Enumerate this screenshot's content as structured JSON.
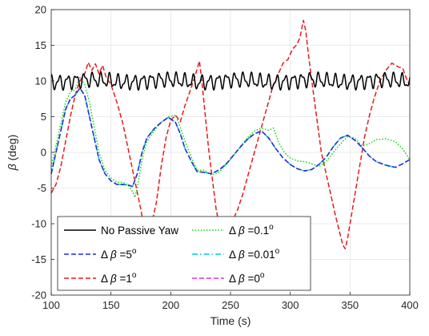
{
  "chart_data": {
    "type": "line",
    "title": "",
    "xlabel": "Time (s)",
    "ylabel_symbol": "β",
    "ylabel_unit": " (deg)",
    "xlim": [
      100,
      400
    ],
    "ylim": [
      -20,
      20
    ],
    "xticks": [
      100,
      150,
      200,
      250,
      300,
      350,
      400
    ],
    "yticks": [
      -20,
      -15,
      -10,
      -5,
      0,
      5,
      10,
      15,
      20
    ],
    "grid": true,
    "legend_position": "lower-left",
    "series": [
      {
        "name": "No Passive Yaw",
        "legend": {
          "pre": "No Passive Yaw",
          "post": "",
          "sup": ""
        },
        "color": "#000000",
        "dash": "solid",
        "oscillation": {
          "mean": 10.0,
          "amplitude": 1.1,
          "period_s": 7
        }
      },
      {
        "name": "Δβ=5°",
        "legend": {
          "pre": "Δ ",
          "post": " =5",
          "sup": "o"
        },
        "color": "#1f2fd6",
        "dash": "dashed",
        "points": [
          [
            100,
            -3
          ],
          [
            104,
            0
          ],
          [
            108,
            3
          ],
          [
            112,
            6
          ],
          [
            116,
            7.5
          ],
          [
            120,
            8
          ],
          [
            124,
            9
          ],
          [
            128,
            8
          ],
          [
            132,
            5
          ],
          [
            136,
            2
          ],
          [
            140,
            -1
          ],
          [
            145,
            -3
          ],
          [
            150,
            -4
          ],
          [
            155,
            -4.5
          ],
          [
            160,
            -4.5
          ],
          [
            165,
            -4.6
          ],
          [
            168,
            -4.8
          ],
          [
            172,
            -3
          ],
          [
            176,
            0
          ],
          [
            180,
            2
          ],
          [
            186,
            3.3
          ],
          [
            192,
            4.2
          ],
          [
            198,
            4.9
          ],
          [
            204,
            4.2
          ],
          [
            208,
            2.6
          ],
          [
            212,
            0.5
          ],
          [
            218,
            -1.5
          ],
          [
            222,
            -2.7
          ],
          [
            228,
            -2.8
          ],
          [
            234,
            -3
          ],
          [
            240,
            -2.5
          ],
          [
            246,
            -1.7
          ],
          [
            252,
            -0.5
          ],
          [
            258,
            0.7
          ],
          [
            264,
            1.8
          ],
          [
            270,
            2.6
          ],
          [
            276,
            3
          ],
          [
            282,
            2
          ],
          [
            288,
            0.5
          ],
          [
            294,
            -0.8
          ],
          [
            300,
            -1.7
          ],
          [
            306,
            -2.3
          ],
          [
            312,
            -2.6
          ],
          [
            318,
            -2.4
          ],
          [
            324,
            -1.7
          ],
          [
            330,
            -0.7
          ],
          [
            336,
            0.8
          ],
          [
            342,
            2
          ],
          [
            348,
            2.4
          ],
          [
            354,
            1.7
          ],
          [
            360,
            0.7
          ],
          [
            366,
            -0.5
          ],
          [
            372,
            -1.3
          ],
          [
            380,
            -1.8
          ],
          [
            388,
            -2.1
          ],
          [
            394,
            -1.6
          ],
          [
            400,
            -1
          ]
        ]
      },
      {
        "name": "Δβ=1°",
        "legend": {
          "pre": "Δ ",
          "post": " =1",
          "sup": "o"
        },
        "color": "#e8191c",
        "dash": "dashed",
        "points": [
          [
            100,
            -5.7
          ],
          [
            104,
            -4.5
          ],
          [
            108,
            -2
          ],
          [
            112,
            1.5
          ],
          [
            116,
            5
          ],
          [
            120,
            8
          ],
          [
            124,
            10
          ],
          [
            128,
            11
          ],
          [
            131,
            12.6
          ],
          [
            134,
            11.5
          ],
          [
            137,
            12.4
          ],
          [
            140,
            11
          ],
          [
            143,
            12.2
          ],
          [
            146,
            10.5
          ],
          [
            150,
            9.5
          ],
          [
            155,
            7
          ],
          [
            160,
            4
          ],
          [
            165,
            0
          ],
          [
            170,
            -4
          ],
          [
            175,
            -8
          ],
          [
            178,
            -11
          ],
          [
            181,
            -12.3
          ],
          [
            184,
            -10
          ],
          [
            188,
            -7
          ],
          [
            192,
            -2
          ],
          [
            196,
            2
          ],
          [
            200,
            4.5
          ],
          [
            204,
            5.2
          ],
          [
            208,
            4.3
          ],
          [
            212,
            6.6
          ],
          [
            216,
            8.5
          ],
          [
            220,
            10.5
          ],
          [
            224,
            12.8
          ],
          [
            226,
            10
          ],
          [
            229,
            5
          ],
          [
            232,
            0
          ],
          [
            235,
            -4
          ],
          [
            238,
            -8
          ],
          [
            241,
            -10.5
          ],
          [
            244,
            -11.5
          ],
          [
            248,
            -10.5
          ],
          [
            252,
            -9.5
          ],
          [
            256,
            -8
          ],
          [
            260,
            -6
          ],
          [
            265,
            -3
          ],
          [
            270,
            0
          ],
          [
            275,
            3
          ],
          [
            280,
            6
          ],
          [
            285,
            9
          ],
          [
            290,
            11
          ],
          [
            294,
            12.5
          ],
          [
            298,
            13
          ],
          [
            302,
            14.5
          ],
          [
            305,
            15
          ],
          [
            308,
            16
          ],
          [
            311,
            18.5
          ],
          [
            313,
            17
          ],
          [
            315,
            14
          ],
          [
            318,
            10
          ],
          [
            322,
            5
          ],
          [
            326,
            0
          ],
          [
            330,
            -3
          ],
          [
            334,
            -6
          ],
          [
            338,
            -9
          ],
          [
            341,
            -11
          ],
          [
            344,
            -13
          ],
          [
            346,
            -13.5
          ],
          [
            348,
            -12
          ],
          [
            350,
            -10
          ],
          [
            354,
            -6
          ],
          [
            358,
            -2
          ],
          [
            362,
            2
          ],
          [
            366,
            5
          ],
          [
            370,
            7.5
          ],
          [
            375,
            10
          ],
          [
            380,
            11.5
          ],
          [
            385,
            12.5
          ],
          [
            390,
            12
          ],
          [
            394,
            11.8
          ],
          [
            398,
            10
          ],
          [
            400,
            9.5
          ]
        ]
      },
      {
        "name": "Δβ=0.1°",
        "legend": {
          "pre": "Δ ",
          "post": " =0.1",
          "sup": "o"
        },
        "color": "#22d422",
        "dash": "dotted",
        "points": [
          [
            100,
            -2
          ],
          [
            104,
            1
          ],
          [
            108,
            4
          ],
          [
            112,
            7
          ],
          [
            116,
            8.5
          ],
          [
            120,
            8.8
          ],
          [
            124,
            10.5
          ],
          [
            128,
            9.5
          ],
          [
            132,
            7
          ],
          [
            136,
            3.5
          ],
          [
            140,
            0
          ],
          [
            145,
            -2.5
          ],
          [
            150,
            -3.6
          ],
          [
            155,
            -4.2
          ],
          [
            160,
            -4.2
          ],
          [
            164,
            -4.5
          ],
          [
            168,
            -5.5
          ],
          [
            170,
            -6.3
          ],
          [
            172,
            -5
          ],
          [
            176,
            -1
          ],
          [
            180,
            1.5
          ],
          [
            186,
            3
          ],
          [
            192,
            4.2
          ],
          [
            198,
            5
          ],
          [
            204,
            5.2
          ],
          [
            208,
            3.5
          ],
          [
            212,
            1.5
          ],
          [
            218,
            -1
          ],
          [
            222,
            -2.5
          ],
          [
            228,
            -2.5
          ],
          [
            234,
            -3.2
          ],
          [
            240,
            -2.8
          ],
          [
            246,
            -1.8
          ],
          [
            252,
            -0.6
          ],
          [
            258,
            0.8
          ],
          [
            264,
            2
          ],
          [
            270,
            3
          ],
          [
            276,
            3.4
          ],
          [
            282,
            3.1
          ],
          [
            286,
            3.4
          ],
          [
            290,
            1.5
          ],
          [
            295,
            0
          ],
          [
            300,
            -0.8
          ],
          [
            306,
            -1.2
          ],
          [
            312,
            -1.3
          ],
          [
            318,
            -1.6
          ],
          [
            324,
            -2
          ],
          [
            330,
            -1.3
          ],
          [
            336,
            0
          ],
          [
            342,
            1.2
          ],
          [
            348,
            2.2
          ],
          [
            354,
            2
          ],
          [
            360,
            0.9
          ],
          [
            366,
            1.2
          ],
          [
            372,
            1.8
          ],
          [
            380,
            1.9
          ],
          [
            388,
            1.5
          ],
          [
            394,
            0.5
          ],
          [
            400,
            -1
          ]
        ]
      },
      {
        "name": "Δβ=0.01°",
        "legend": {
          "pre": "Δ ",
          "post": " =0.01",
          "sup": "o"
        },
        "color": "#00c8d2",
        "dash": "dashdot",
        "points": [
          [
            100,
            -3
          ],
          [
            104,
            0
          ],
          [
            108,
            3
          ],
          [
            112,
            6
          ],
          [
            116,
            7.5
          ],
          [
            120,
            8
          ],
          [
            124,
            9
          ],
          [
            128,
            8
          ],
          [
            132,
            5
          ],
          [
            136,
            2
          ],
          [
            140,
            -1
          ],
          [
            145,
            -3
          ],
          [
            150,
            -4
          ],
          [
            155,
            -4.5
          ],
          [
            160,
            -4.5
          ],
          [
            165,
            -4.6
          ],
          [
            168,
            -4.8
          ],
          [
            172,
            -3
          ],
          [
            176,
            0
          ],
          [
            180,
            2
          ],
          [
            186,
            3.3
          ],
          [
            192,
            4.2
          ],
          [
            198,
            4.9
          ],
          [
            204,
            4.2
          ],
          [
            208,
            2.6
          ],
          [
            212,
            0.5
          ],
          [
            218,
            -1.5
          ],
          [
            222,
            -2.7
          ],
          [
            228,
            -2.8
          ],
          [
            234,
            -3
          ],
          [
            240,
            -2.5
          ],
          [
            246,
            -1.7
          ],
          [
            252,
            -0.5
          ],
          [
            258,
            0.7
          ],
          [
            264,
            1.8
          ],
          [
            270,
            2.6
          ],
          [
            276,
            3
          ],
          [
            282,
            2
          ],
          [
            288,
            0.5
          ],
          [
            294,
            -0.8
          ],
          [
            300,
            -1.7
          ],
          [
            306,
            -2.3
          ],
          [
            312,
            -2.6
          ],
          [
            318,
            -2.4
          ],
          [
            324,
            -1.7
          ],
          [
            330,
            -0.7
          ],
          [
            336,
            0.8
          ],
          [
            342,
            2
          ],
          [
            348,
            2.4
          ],
          [
            354,
            1.7
          ],
          [
            360,
            0.7
          ],
          [
            366,
            -0.5
          ],
          [
            372,
            -1.3
          ],
          [
            380,
            -1.8
          ],
          [
            388,
            -2.1
          ],
          [
            394,
            -1.6
          ],
          [
            400,
            -1
          ]
        ]
      },
      {
        "name": "Δβ=0°",
        "legend": {
          "pre": "Δ ",
          "post": " =0",
          "sup": "o"
        },
        "color": "#e62ee6",
        "dash": "dashed",
        "points": [
          [
            100,
            -3
          ],
          [
            104,
            0
          ],
          [
            108,
            3
          ],
          [
            112,
            6
          ],
          [
            116,
            7.5
          ],
          [
            120,
            8
          ],
          [
            124,
            9
          ],
          [
            128,
            8
          ],
          [
            132,
            5
          ],
          [
            136,
            2
          ],
          [
            140,
            -1
          ],
          [
            145,
            -3
          ],
          [
            150,
            -4
          ],
          [
            155,
            -4.5
          ],
          [
            160,
            -4.5
          ],
          [
            165,
            -4.6
          ],
          [
            168,
            -4.8
          ],
          [
            172,
            -3
          ],
          [
            176,
            0
          ],
          [
            180,
            2
          ],
          [
            186,
            3.3
          ],
          [
            192,
            4.2
          ],
          [
            198,
            4.9
          ],
          [
            204,
            4.2
          ],
          [
            208,
            2.6
          ],
          [
            212,
            0.5
          ],
          [
            218,
            -1.5
          ],
          [
            222,
            -2.7
          ],
          [
            228,
            -2.8
          ],
          [
            234,
            -3
          ],
          [
            240,
            -2.5
          ],
          [
            246,
            -1.7
          ],
          [
            252,
            -0.5
          ],
          [
            258,
            0.7
          ],
          [
            264,
            1.8
          ],
          [
            270,
            2.6
          ],
          [
            276,
            3
          ],
          [
            282,
            2
          ],
          [
            288,
            0.5
          ],
          [
            294,
            -0.8
          ],
          [
            300,
            -1.7
          ],
          [
            306,
            -2.3
          ],
          [
            312,
            -2.6
          ],
          [
            318,
            -2.4
          ],
          [
            324,
            -1.7
          ],
          [
            330,
            -0.7
          ],
          [
            336,
            0.8
          ],
          [
            342,
            2
          ],
          [
            348,
            2.4
          ],
          [
            354,
            1.7
          ],
          [
            360,
            0.7
          ],
          [
            366,
            -0.5
          ],
          [
            372,
            -1.3
          ],
          [
            380,
            -1.8
          ],
          [
            388,
            -2.1
          ],
          [
            394,
            -1.6
          ],
          [
            400,
            -1
          ]
        ]
      }
    ]
  }
}
